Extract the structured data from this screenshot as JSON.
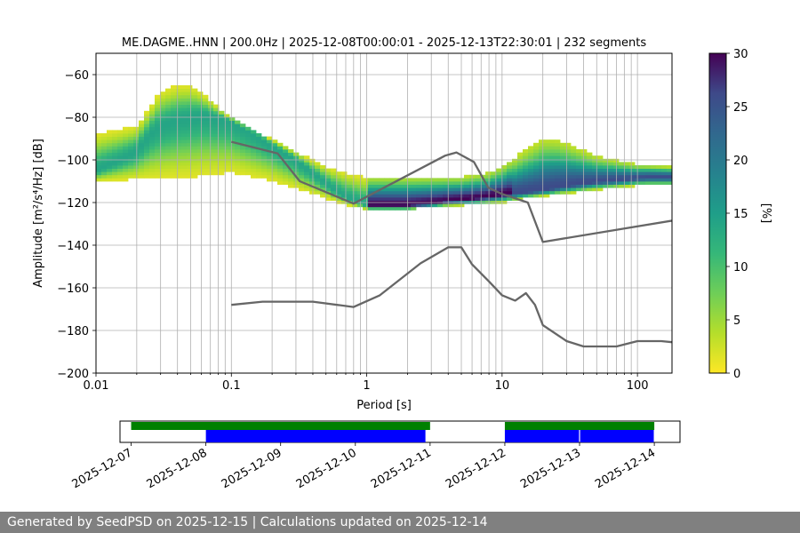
{
  "chart_data": [
    {
      "type": "heatmap",
      "title": "ME.DAGME..HNN | 200.0Hz | 2025-12-08T00:00:01 - 2025-12-13T22:30:01 | 232 segments",
      "xlabel": "Period [s]",
      "ylabel": "Amplitude [m²/s⁴/Hz] [dB]",
      "x_scale": "log",
      "xlim": [
        0.01,
        180
      ],
      "ylim": [
        -200,
        -50
      ],
      "x_tick_labels": [
        "0.01",
        "0.1",
        "1",
        "10",
        "100"
      ],
      "y_tick_labels": [
        "−200",
        "−180",
        "−160",
        "−140",
        "−120",
        "−100",
        "−80",
        "−60"
      ],
      "grid": true,
      "colorbar": {
        "label": "[%]",
        "range": [
          0,
          30
        ],
        "tick_labels": [
          "0",
          "5",
          "10",
          "15",
          "20",
          "25",
          "30"
        ],
        "colormap": "viridis_r"
      },
      "psd_mode": {
        "period": [
          0.01,
          0.015,
          0.02,
          0.025,
          0.03,
          0.04,
          0.05,
          0.06,
          0.08,
          0.1,
          0.15,
          0.2,
          0.3,
          0.4,
          0.5,
          0.6,
          0.8,
          1,
          1.5,
          2,
          3,
          4,
          6,
          8,
          10,
          15,
          20,
          30,
          50,
          80,
          120,
          180
        ],
        "amplitude": [
          -105,
          -100,
          -96,
          -88,
          -84,
          -81,
          -80,
          -79,
          -80,
          -82,
          -88,
          -93,
          -100,
          -106,
          -111,
          -115,
          -119,
          -121,
          -121,
          -121,
          -120,
          -119,
          -118,
          -117,
          -116,
          -115,
          -114,
          -112,
          -110,
          -109,
          -108,
          -108
        ]
      },
      "psd_upper_envelope": {
        "period": [
          0.01,
          0.02,
          0.03,
          0.04,
          0.05,
          0.06,
          0.08,
          0.1,
          0.15,
          0.2,
          0.3,
          0.5,
          0.8,
          1,
          3,
          5,
          8,
          10,
          15,
          20,
          25,
          30,
          50,
          100,
          180
        ],
        "amplitude": [
          -88,
          -84,
          -68,
          -65,
          -65,
          -68,
          -75,
          -81,
          -87,
          -90,
          -96,
          -103,
          -107,
          -108,
          -108,
          -108,
          -106,
          -103,
          -95,
          -90,
          -90,
          -92,
          -98,
          -102,
          -103
        ]
      },
      "psd_lower_envelope": {
        "period": [
          0.01,
          0.02,
          0.05,
          0.1,
          0.2,
          0.5,
          0.8,
          1,
          3,
          6,
          10,
          15,
          20,
          50,
          100,
          180
        ],
        "amplitude": [
          -110,
          -109,
          -108,
          -106,
          -110,
          -118,
          -122,
          -122,
          -122,
          -121,
          -120,
          -118,
          -117,
          -114,
          -112,
          -112
        ]
      },
      "series": [
        {
          "name": "",
          "period": [
            0.1,
            0.22,
            0.32,
            0.8,
            3.8,
            4.6,
            6.2,
            7.9,
            10,
            15.5,
            20,
            180
          ],
          "values": [
            -91.5,
            -97,
            -110,
            -120.5,
            -98,
            -96.5,
            -101,
            -113,
            -116,
            -120,
            -138.5,
            -128.5
          ]
        },
        {
          "name": "",
          "period": [
            0.1,
            0.17,
            0.4,
            0.8,
            1.25,
            2.5,
            4,
            5,
            6,
            8,
            10,
            12.5,
            15,
            17.5,
            20,
            30,
            40,
            70,
            100,
            150,
            180
          ],
          "values": [
            -168,
            -166.5,
            -166.5,
            -169,
            -163.5,
            -148.5,
            -141,
            -141,
            -149,
            -157,
            -163.5,
            -166,
            -162.5,
            -168,
            -177.5,
            -185,
            -187.5,
            -187.5,
            -185,
            -185,
            -185.5
          ]
        }
      ]
    },
    {
      "type": "timeline",
      "x_tick_labels": [
        "2025-12-07",
        "2025-12-08",
        "2025-12-09",
        "2025-12-10",
        "2025-12-11",
        "2025-12-12",
        "2025-12-13",
        "2025-12-14"
      ],
      "xlim": [
        "2025-12-06T20:25",
        "2025-12-14T08:15"
      ],
      "segments": [
        {
          "lane": "upper",
          "color": "#008000",
          "start": "2025-12-07T00:00",
          "end": "2025-12-11T00:00"
        },
        {
          "lane": "upper",
          "color": "#008000",
          "start": "2025-12-12T00:00",
          "end": "2025-12-14T00:00"
        },
        {
          "lane": "lower",
          "color": "#0000ff",
          "start": "2025-12-08T00:00",
          "end": "2025-12-10T22:30"
        },
        {
          "lane": "lower",
          "color": "#0000ff",
          "start": "2025-12-12T00:00",
          "end": "2025-12-12T23:50"
        },
        {
          "lane": "lower",
          "color": "#0000ff",
          "start": "2025-12-13T00:10",
          "end": "2025-12-13T23:50"
        }
      ]
    }
  ],
  "footer": {
    "text": "Generated by SeedPSD on 2025-12-15 | Calculations updated on 2025-12-14"
  }
}
